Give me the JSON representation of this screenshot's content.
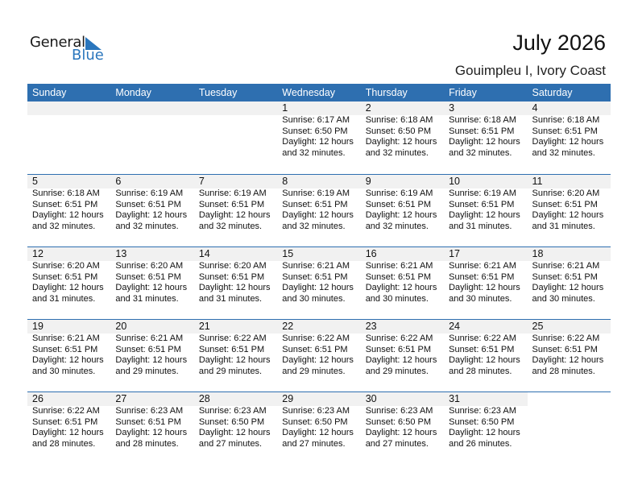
{
  "logo": {
    "line1": "General",
    "line2": "Blue"
  },
  "header": {
    "title": "July 2026",
    "location": "Gouimpleu I, Ivory Coast"
  },
  "colors": {
    "accent": "#2e6fb0",
    "day_band": "#f1f1f1"
  },
  "weekdays": [
    "Sunday",
    "Monday",
    "Tuesday",
    "Wednesday",
    "Thursday",
    "Friday",
    "Saturday"
  ],
  "weeks": [
    [
      null,
      null,
      null,
      {
        "day": "1",
        "sunrise": "Sunrise: 6:17 AM",
        "sunset": "Sunset: 6:50 PM",
        "daylight1": "Daylight: 12 hours",
        "daylight2": "and 32 minutes."
      },
      {
        "day": "2",
        "sunrise": "Sunrise: 6:18 AM",
        "sunset": "Sunset: 6:50 PM",
        "daylight1": "Daylight: 12 hours",
        "daylight2": "and 32 minutes."
      },
      {
        "day": "3",
        "sunrise": "Sunrise: 6:18 AM",
        "sunset": "Sunset: 6:51 PM",
        "daylight1": "Daylight: 12 hours",
        "daylight2": "and 32 minutes."
      },
      {
        "day": "4",
        "sunrise": "Sunrise: 6:18 AM",
        "sunset": "Sunset: 6:51 PM",
        "daylight1": "Daylight: 12 hours",
        "daylight2": "and 32 minutes."
      }
    ],
    [
      {
        "day": "5",
        "sunrise": "Sunrise: 6:18 AM",
        "sunset": "Sunset: 6:51 PM",
        "daylight1": "Daylight: 12 hours",
        "daylight2": "and 32 minutes."
      },
      {
        "day": "6",
        "sunrise": "Sunrise: 6:19 AM",
        "sunset": "Sunset: 6:51 PM",
        "daylight1": "Daylight: 12 hours",
        "daylight2": "and 32 minutes."
      },
      {
        "day": "7",
        "sunrise": "Sunrise: 6:19 AM",
        "sunset": "Sunset: 6:51 PM",
        "daylight1": "Daylight: 12 hours",
        "daylight2": "and 32 minutes."
      },
      {
        "day": "8",
        "sunrise": "Sunrise: 6:19 AM",
        "sunset": "Sunset: 6:51 PM",
        "daylight1": "Daylight: 12 hours",
        "daylight2": "and 32 minutes."
      },
      {
        "day": "9",
        "sunrise": "Sunrise: 6:19 AM",
        "sunset": "Sunset: 6:51 PM",
        "daylight1": "Daylight: 12 hours",
        "daylight2": "and 32 minutes."
      },
      {
        "day": "10",
        "sunrise": "Sunrise: 6:19 AM",
        "sunset": "Sunset: 6:51 PM",
        "daylight1": "Daylight: 12 hours",
        "daylight2": "and 31 minutes."
      },
      {
        "day": "11",
        "sunrise": "Sunrise: 6:20 AM",
        "sunset": "Sunset: 6:51 PM",
        "daylight1": "Daylight: 12 hours",
        "daylight2": "and 31 minutes."
      }
    ],
    [
      {
        "day": "12",
        "sunrise": "Sunrise: 6:20 AM",
        "sunset": "Sunset: 6:51 PM",
        "daylight1": "Daylight: 12 hours",
        "daylight2": "and 31 minutes."
      },
      {
        "day": "13",
        "sunrise": "Sunrise: 6:20 AM",
        "sunset": "Sunset: 6:51 PM",
        "daylight1": "Daylight: 12 hours",
        "daylight2": "and 31 minutes."
      },
      {
        "day": "14",
        "sunrise": "Sunrise: 6:20 AM",
        "sunset": "Sunset: 6:51 PM",
        "daylight1": "Daylight: 12 hours",
        "daylight2": "and 31 minutes."
      },
      {
        "day": "15",
        "sunrise": "Sunrise: 6:21 AM",
        "sunset": "Sunset: 6:51 PM",
        "daylight1": "Daylight: 12 hours",
        "daylight2": "and 30 minutes."
      },
      {
        "day": "16",
        "sunrise": "Sunrise: 6:21 AM",
        "sunset": "Sunset: 6:51 PM",
        "daylight1": "Daylight: 12 hours",
        "daylight2": "and 30 minutes."
      },
      {
        "day": "17",
        "sunrise": "Sunrise: 6:21 AM",
        "sunset": "Sunset: 6:51 PM",
        "daylight1": "Daylight: 12 hours",
        "daylight2": "and 30 minutes."
      },
      {
        "day": "18",
        "sunrise": "Sunrise: 6:21 AM",
        "sunset": "Sunset: 6:51 PM",
        "daylight1": "Daylight: 12 hours",
        "daylight2": "and 30 minutes."
      }
    ],
    [
      {
        "day": "19",
        "sunrise": "Sunrise: 6:21 AM",
        "sunset": "Sunset: 6:51 PM",
        "daylight1": "Daylight: 12 hours",
        "daylight2": "and 30 minutes."
      },
      {
        "day": "20",
        "sunrise": "Sunrise: 6:21 AM",
        "sunset": "Sunset: 6:51 PM",
        "daylight1": "Daylight: 12 hours",
        "daylight2": "and 29 minutes."
      },
      {
        "day": "21",
        "sunrise": "Sunrise: 6:22 AM",
        "sunset": "Sunset: 6:51 PM",
        "daylight1": "Daylight: 12 hours",
        "daylight2": "and 29 minutes."
      },
      {
        "day": "22",
        "sunrise": "Sunrise: 6:22 AM",
        "sunset": "Sunset: 6:51 PM",
        "daylight1": "Daylight: 12 hours",
        "daylight2": "and 29 minutes."
      },
      {
        "day": "23",
        "sunrise": "Sunrise: 6:22 AM",
        "sunset": "Sunset: 6:51 PM",
        "daylight1": "Daylight: 12 hours",
        "daylight2": "and 29 minutes."
      },
      {
        "day": "24",
        "sunrise": "Sunrise: 6:22 AM",
        "sunset": "Sunset: 6:51 PM",
        "daylight1": "Daylight: 12 hours",
        "daylight2": "and 28 minutes."
      },
      {
        "day": "25",
        "sunrise": "Sunrise: 6:22 AM",
        "sunset": "Sunset: 6:51 PM",
        "daylight1": "Daylight: 12 hours",
        "daylight2": "and 28 minutes."
      }
    ],
    [
      {
        "day": "26",
        "sunrise": "Sunrise: 6:22 AM",
        "sunset": "Sunset: 6:51 PM",
        "daylight1": "Daylight: 12 hours",
        "daylight2": "and 28 minutes."
      },
      {
        "day": "27",
        "sunrise": "Sunrise: 6:23 AM",
        "sunset": "Sunset: 6:51 PM",
        "daylight1": "Daylight: 12 hours",
        "daylight2": "and 28 minutes."
      },
      {
        "day": "28",
        "sunrise": "Sunrise: 6:23 AM",
        "sunset": "Sunset: 6:50 PM",
        "daylight1": "Daylight: 12 hours",
        "daylight2": "and 27 minutes."
      },
      {
        "day": "29",
        "sunrise": "Sunrise: 6:23 AM",
        "sunset": "Sunset: 6:50 PM",
        "daylight1": "Daylight: 12 hours",
        "daylight2": "and 27 minutes."
      },
      {
        "day": "30",
        "sunrise": "Sunrise: 6:23 AM",
        "sunset": "Sunset: 6:50 PM",
        "daylight1": "Daylight: 12 hours",
        "daylight2": "and 27 minutes."
      },
      {
        "day": "31",
        "sunrise": "Sunrise: 6:23 AM",
        "sunset": "Sunset: 6:50 PM",
        "daylight1": "Daylight: 12 hours",
        "daylight2": "and 26 minutes."
      },
      null
    ]
  ]
}
